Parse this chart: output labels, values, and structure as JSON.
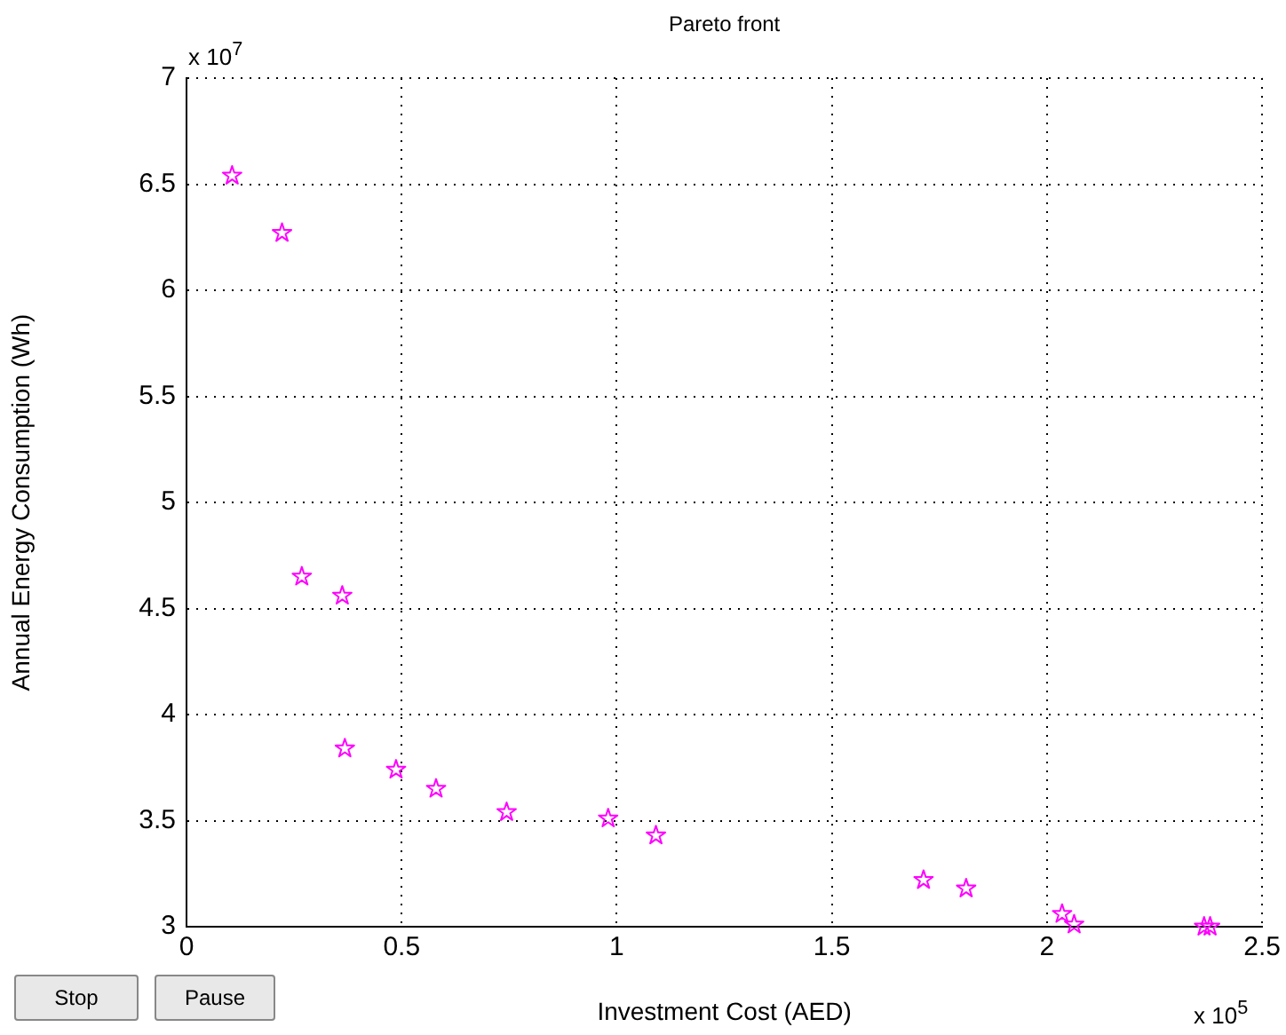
{
  "chart_data": {
    "type": "scatter",
    "title": "Pareto front",
    "xlabel": "Investment Cost (AED)",
    "ylabel": "Annual Energy Consumption (Wh)",
    "x": [
      0.106,
      0.222,
      0.268,
      0.362,
      0.368,
      0.487,
      0.58,
      0.744,
      0.98,
      1.091,
      1.713,
      1.812,
      2.035,
      2.063,
      2.365,
      2.379
    ],
    "series": [
      {
        "color": "#ff00ff",
        "values": [
          6.54,
          6.27,
          4.65,
          4.56,
          3.84,
          3.74,
          3.65,
          3.54,
          3.51,
          3.43,
          3.22,
          3.18,
          3.06,
          3.01,
          3.0,
          3.0
        ]
      }
    ],
    "xlim": [
      0,
      2.5
    ],
    "ylim": [
      3,
      7
    ],
    "xticks": [
      0,
      0.5,
      1,
      1.5,
      2,
      2.5
    ],
    "yticks": [
      3,
      3.5,
      4,
      4.5,
      5,
      5.5,
      6,
      6.5,
      7
    ],
    "annotations": [
      "x 10$^{7}$",
      "x 10$^{5}$",
      "Stop",
      "Pause"
    ],
    "grid": true,
    "legend": false,
    "marker": "star"
  }
}
